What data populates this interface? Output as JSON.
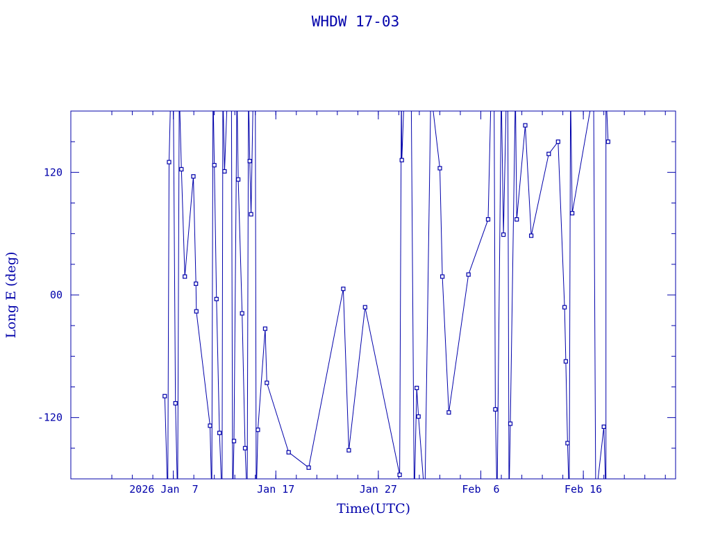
{
  "chart_data": {
    "type": "line",
    "title": "WHDW 17-03",
    "xlabel": "Time(UTC)",
    "ylabel": "Long E (deg)",
    "xlim": [
      "2025-12-28",
      "2026-02-25"
    ],
    "ylim": [
      -180,
      180
    ],
    "xticks": [
      {
        "date": "2026-01-07",
        "label": "2026 Jan  7"
      },
      {
        "date": "2026-01-17",
        "label": "Jan 17"
      },
      {
        "date": "2026-01-27",
        "label": "Jan 27"
      },
      {
        "date": "2026-02-06",
        "label": "Feb  6"
      },
      {
        "date": "2026-02-16",
        "label": "Feb 16"
      }
    ],
    "yticks": [
      {
        "value": 120,
        "label": "120"
      },
      {
        "value": 0,
        "label": "00"
      },
      {
        "value": -120,
        "label": "-120"
      }
    ],
    "line_color": "#0000aa",
    "grid": false,
    "x_unit": "date (UTC)",
    "series": [
      {
        "values": [
          {
            "x": "2026-01-06T04:00",
            "y": -99
          },
          {
            "x": "2026-01-06T11:00",
            "y": -200
          },
          {
            "x": "2026-01-06T14:00",
            "y": 130
          },
          {
            "x": "2026-01-06T18:00",
            "y": 200
          },
          {
            "x": "2026-01-07T00:00",
            "y": 200
          },
          {
            "x": "2026-01-07T05:00",
            "y": -106
          },
          {
            "x": "2026-01-07T10:00",
            "y": -200
          },
          {
            "x": "2026-01-07T14:00",
            "y": 200
          },
          {
            "x": "2026-01-07T19:00",
            "y": 123
          },
          {
            "x": "2026-01-08T03:00",
            "y": 18
          },
          {
            "x": "2026-01-08T23:00",
            "y": 116
          },
          {
            "x": "2026-01-09T05:00",
            "y": 11
          },
          {
            "x": "2026-01-09T06:00",
            "y": -16
          },
          {
            "x": "2026-01-10T14:00",
            "y": -128
          },
          {
            "x": "2026-01-10T18:00",
            "y": -200
          },
          {
            "x": "2026-01-10T21:00",
            "y": 200
          },
          {
            "x": "2026-01-11T00:00",
            "y": 127
          },
          {
            "x": "2026-01-11T05:00",
            "y": -4
          },
          {
            "x": "2026-01-11T12:00",
            "y": -135
          },
          {
            "x": "2026-01-11T18:00",
            "y": -200
          },
          {
            "x": "2026-01-11T20:00",
            "y": 200
          },
          {
            "x": "2026-01-12T00:00",
            "y": 121
          },
          {
            "x": "2026-01-12T07:00",
            "y": 200
          },
          {
            "x": "2026-01-12T16:00",
            "y": 200
          },
          {
            "x": "2026-01-12T19:00",
            "y": -200
          },
          {
            "x": "2026-01-12T22:00",
            "y": -143
          },
          {
            "x": "2026-01-13T05:00",
            "y": 200
          },
          {
            "x": "2026-01-13T08:00",
            "y": 113
          },
          {
            "x": "2026-01-13T17:00",
            "y": -18
          },
          {
            "x": "2026-01-14T00:00",
            "y": -150
          },
          {
            "x": "2026-01-14T05:00",
            "y": -200
          },
          {
            "x": "2026-01-14T08:00",
            "y": 200
          },
          {
            "x": "2026-01-14T11:00",
            "y": 131
          },
          {
            "x": "2026-01-14T14:00",
            "y": 79
          },
          {
            "x": "2026-01-14T19:00",
            "y": 200
          },
          {
            "x": "2026-01-15T00:00",
            "y": 200
          },
          {
            "x": "2026-01-15T02:00",
            "y": -200
          },
          {
            "x": "2026-01-15T06:00",
            "y": -132
          },
          {
            "x": "2026-01-15T23:00",
            "y": -33
          },
          {
            "x": "2026-01-16T03:00",
            "y": -86
          },
          {
            "x": "2026-01-18T06:00",
            "y": -154
          },
          {
            "x": "2026-01-20T05:00",
            "y": -169
          },
          {
            "x": "2026-01-23T14:00",
            "y": 6
          },
          {
            "x": "2026-01-24T03:00",
            "y": -152
          },
          {
            "x": "2026-01-25T17:00",
            "y": -12
          },
          {
            "x": "2026-01-29T02:00",
            "y": -176
          },
          {
            "x": "2026-01-29T06:00",
            "y": 200
          },
          {
            "x": "2026-01-29T07:00",
            "y": 132
          },
          {
            "x": "2026-01-29T13:00",
            "y": 200
          },
          {
            "x": "2026-01-30T05:00",
            "y": 200
          },
          {
            "x": "2026-01-30T12:00",
            "y": -200
          },
          {
            "x": "2026-01-30T18:00",
            "y": -91
          },
          {
            "x": "2026-01-30T22:00",
            "y": -119
          },
          {
            "x": "2026-01-31T13:00",
            "y": -200
          },
          {
            "x": "2026-02-01T03:00",
            "y": 200
          },
          {
            "x": "2026-02-02T00:00",
            "y": 124
          },
          {
            "x": "2026-02-02T06:00",
            "y": 18
          },
          {
            "x": "2026-02-02T21:00",
            "y": -115
          },
          {
            "x": "2026-02-04T19:00",
            "y": 20
          },
          {
            "x": "2026-02-06T17:00",
            "y": 74
          },
          {
            "x": "2026-02-07T00:00",
            "y": 200
          },
          {
            "x": "2026-02-07T07:00",
            "y": 200
          },
          {
            "x": "2026-02-07T10:00",
            "y": -112
          },
          {
            "x": "2026-02-07T14:00",
            "y": -200
          },
          {
            "x": "2026-02-08T00:00",
            "y": 200
          },
          {
            "x": "2026-02-08T05:00",
            "y": 59
          },
          {
            "x": "2026-02-08T12:00",
            "y": 200
          },
          {
            "x": "2026-02-08T15:00",
            "y": 200
          },
          {
            "x": "2026-02-08T18:00",
            "y": -200
          },
          {
            "x": "2026-02-08T21:00",
            "y": -126
          },
          {
            "x": "2026-02-09T09:00",
            "y": 200
          },
          {
            "x": "2026-02-09T12:00",
            "y": 74
          },
          {
            "x": "2026-02-10T08:00",
            "y": 166
          },
          {
            "x": "2026-02-10T22:00",
            "y": 58
          },
          {
            "x": "2026-02-12T15:00",
            "y": 138
          },
          {
            "x": "2026-02-13T13:00",
            "y": 150
          },
          {
            "x": "2026-02-14T04:00",
            "y": -12
          },
          {
            "x": "2026-02-14T07:00",
            "y": -65
          },
          {
            "x": "2026-02-14T11:00",
            "y": -145
          },
          {
            "x": "2026-02-14T15:00",
            "y": -200
          },
          {
            "x": "2026-02-14T18:00",
            "y": 200
          },
          {
            "x": "2026-02-14T22:00",
            "y": 80
          },
          {
            "x": "2026-02-17T00:00",
            "y": 200
          },
          {
            "x": "2026-02-17T05:00",
            "y": -200
          },
          {
            "x": "2026-02-18T00:00",
            "y": -129
          },
          {
            "x": "2026-02-18T05:00",
            "y": -200
          },
          {
            "x": "2026-02-18T05:00",
            "y": 200
          },
          {
            "x": "2026-02-18T10:00",
            "y": 150
          }
        ]
      }
    ]
  }
}
